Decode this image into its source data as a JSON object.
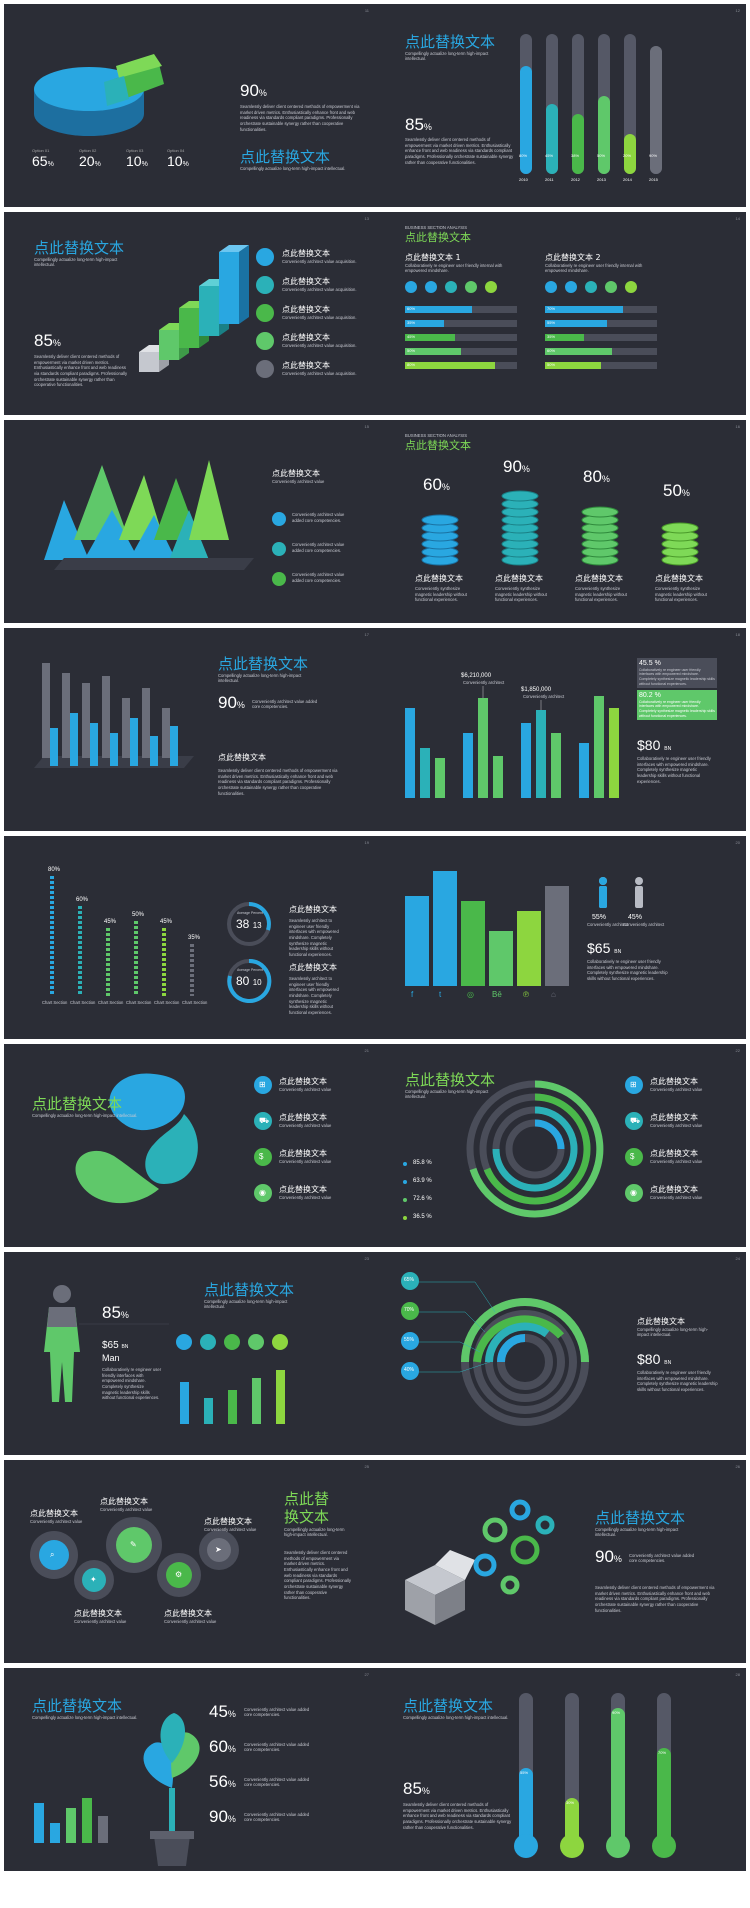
{
  "colors": {
    "bg": "#2b2d36",
    "blue": "#29a7e1",
    "teal": "#2bb1b8",
    "green": "#5fc86a",
    "lime": "#8dd63f",
    "gray": "#6b6e7a"
  },
  "common": {
    "title": "点此替换文本",
    "sub": "Compellingly actualize long-term high-impact intellectual.",
    "para": "Seamlessly deliver client centered methods of empowerment via market driven metrics. Enthusiastically enhance front and web readiness via standards compliant paradigms. Professionally orchestrate sustainable synergy rather than cooperative functionalities.",
    "conv": "Conveniently architect value added core competencies.",
    "collab": "Collaboratively re engineer user friendly interfaces with empowered mindshare. Completely synthesize magnetic leadership skills without functional experiences."
  },
  "s1": {
    "num": "11",
    "big": "90",
    "unit": "%",
    "options": [
      {
        "label": "Option 01",
        "value": "65",
        "unit": "%"
      },
      {
        "label": "Option 02",
        "value": "20",
        "unit": "%"
      },
      {
        "label": "Option 03",
        "value": "10",
        "unit": "%"
      },
      {
        "label": "Option 04",
        "value": "10",
        "unit": "%"
      }
    ]
  },
  "s2": {
    "num": "12",
    "big": "85",
    "unit": "%",
    "bars": [
      {
        "year": "2010",
        "label": "80%"
      },
      {
        "year": "2011",
        "label": "45%"
      },
      {
        "year": "2012",
        "label": "38%"
      },
      {
        "year": "2013",
        "label": "50%"
      },
      {
        "year": "2014",
        "label": "20%"
      },
      {
        "year": "2015",
        "label": "90%"
      }
    ]
  },
  "s3": {
    "num": "13",
    "big": "85",
    "unit": "%",
    "legend_title": "点此替换文本",
    "legend_sub": "Conveniently architect value acquisition."
  },
  "s4": {
    "num": "14",
    "header": "BUSINESS SECTION ANALYSIS",
    "title": "点此替换文本",
    "col1": "点此替换文本 1",
    "col2": "点此替换文本 2",
    "colsub": "Collaboratively re engineer user friendly internal with empowered mindshare.",
    "rows1": [
      "60%",
      "35%",
      "45%",
      "50%",
      "80%"
    ],
    "rows2": [
      "70%",
      "55%",
      "35%",
      "60%",
      "50%"
    ]
  },
  "s5": {
    "num": "15",
    "title": "点此替换文本",
    "sub": "Conveniently architect value",
    "items": [
      "Conveniently architect value added core competencies.",
      "Conveniently architect value added core competencies.",
      "Conveniently architect value added core competencies."
    ]
  },
  "s6": {
    "num": "16",
    "header": "BUSINESS SECTION ANALYSIS",
    "title": "点此替换文本",
    "stacks": [
      {
        "value": "60",
        "unit": "%"
      },
      {
        "value": "90",
        "unit": "%"
      },
      {
        "value": "80",
        "unit": "%"
      },
      {
        "value": "50",
        "unit": "%"
      }
    ],
    "label": "点此替换文本",
    "desc": "Conveniently synthesize magnetic leadership without functional experiences."
  },
  "s7": {
    "num": "17",
    "title": "点此替换文本",
    "big": "90",
    "unit": "%",
    "bigtext": "Conveniently architect value added core competencies.",
    "title2": "点此替换文本"
  },
  "s8": {
    "num": "18",
    "top1": "$6,210,000",
    "top2": "$1,850,000",
    "toplbl": "Conveniently architect",
    "pct1": "45.5 %",
    "pct2": "80.2 %",
    "money": "$80",
    "mu": "BN"
  },
  "s9": {
    "num": "19",
    "pcts": [
      "80%",
      "60%",
      "45%",
      "50%",
      "45%",
      "35%"
    ],
    "cats": [
      "Chart Section",
      "Chart Section",
      "Chart Section",
      "Chart Section",
      "Chart Section",
      "Chart Section"
    ],
    "ring1": {
      "label": "Average Percent",
      "a": "38",
      "b": "13"
    },
    "ring2": {
      "label": "Average Percent",
      "a": "80",
      "b": "10"
    },
    "title": "点此替换文本",
    "text": "Seamlessly architect to engineer user friendly interfaces with empowered mindshare. Completely synthesize magnetic leadership skills without functional experiences."
  },
  "s10": {
    "num": "20",
    "icons": [
      "f",
      "t",
      "◎",
      "Bē",
      "℗",
      "⌂"
    ],
    "pct1": "55%",
    "pct2": "45%",
    "pl": "Conveniently architect",
    "money": "$65",
    "mu": "BN"
  },
  "s11": {
    "num": "21",
    "title": "点此替换文本",
    "items": [
      "点此替换文本",
      "点此替换文本",
      "点此替换文本",
      "点此替换文本"
    ],
    "isub": "Conveniently architect value"
  },
  "s12": {
    "num": "22",
    "title": "点此替换文本",
    "stats": [
      "85.8",
      "63.9",
      "72.6",
      "36.5"
    ],
    "unit": "%",
    "items": [
      "点此替换文本",
      "点此替换文本",
      "点此替换文本",
      "点此替换文本"
    ],
    "isub": "Conveniently architect value"
  },
  "s13": {
    "num": "23",
    "big": "85",
    "unit": "%",
    "money": "$65",
    "mu": "BN",
    "man": "Man",
    "title": "点此替换文本"
  },
  "s14": {
    "num": "24",
    "tags": [
      "65%",
      "70%",
      "55%",
      "40%"
    ],
    "title": "点此替换文本",
    "money": "$80",
    "mu": "BN"
  },
  "s15": {
    "num": "25",
    "title": "点此替\n换文本",
    "labels": [
      "点此替换文本",
      "点此替换文本",
      "点此替换文本",
      "点此替换文本",
      "点此替换文本"
    ],
    "lsub": "Conveniently architect value"
  },
  "s16": {
    "num": "26",
    "title": "点此替换文本",
    "big": "90",
    "unit": "%"
  },
  "s17": {
    "num": "27",
    "title": "点此替换文本",
    "values": [
      "45",
      "60",
      "56",
      "90"
    ],
    "unit": "%"
  },
  "s18": {
    "num": "28",
    "title": "点此替换文本",
    "big": "85",
    "unit": "%",
    "therm": [
      "55%",
      "30%",
      "90%",
      "70%"
    ]
  }
}
